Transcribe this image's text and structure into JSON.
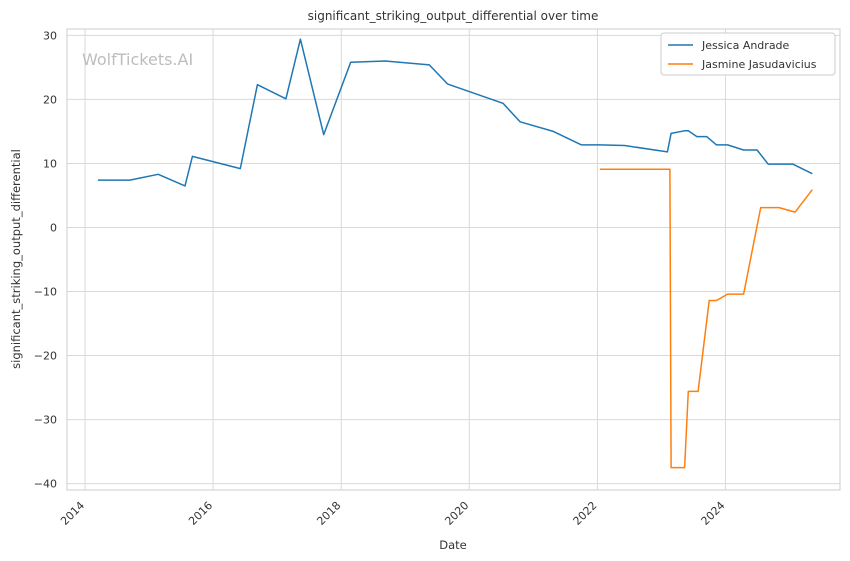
{
  "watermark": "WolfTickets.AI",
  "chart_data": {
    "type": "line",
    "title": "significant_striking_output_differential over time",
    "xlabel": "Date",
    "ylabel": "significant_striking_output_differential",
    "x_ticks": [
      "2014",
      "2016",
      "2018",
      "2020",
      "2022",
      "2024"
    ],
    "y_ticks": [
      30,
      20,
      10,
      0,
      -10,
      -20,
      -30,
      -40
    ],
    "xlim": [
      "2013-09-20",
      "2025-10-15"
    ],
    "ylim": [
      -41,
      31
    ],
    "grid": true,
    "legend_position": "top-right",
    "colors": {
      "grid": "#d9d9d9",
      "axes": "#cccccc"
    },
    "series": [
      {
        "name": "Jessica Andrade",
        "color": "#1f77b4",
        "points": [
          [
            "2014-03-15",
            7.4
          ],
          [
            "2014-09-13",
            7.4
          ],
          [
            "2015-02-22",
            8.3
          ],
          [
            "2015-07-25",
            6.5
          ],
          [
            "2015-09-05",
            11.1
          ],
          [
            "2016-06-04",
            9.2
          ],
          [
            "2016-09-10",
            22.3
          ],
          [
            "2017-02-19",
            20.1
          ],
          [
            "2017-05-13",
            29.4
          ],
          [
            "2017-09-23",
            14.5
          ],
          [
            "2018-02-24",
            25.8
          ],
          [
            "2018-09-08",
            26.0
          ],
          [
            "2019-05-18",
            25.4
          ],
          [
            "2019-08-31",
            22.4
          ],
          [
            "2020-07-11",
            19.4
          ],
          [
            "2020-10-17",
            16.5
          ],
          [
            "2021-04-24",
            15.0
          ],
          [
            "2021-10-02",
            12.9
          ],
          [
            "2022-01-15",
            12.9
          ],
          [
            "2022-06-04",
            12.8
          ],
          [
            "2023-02-04",
            11.8
          ],
          [
            "2023-02-25",
            14.7
          ],
          [
            "2023-05-13",
            15.1
          ],
          [
            "2023-06-03",
            15.1
          ],
          [
            "2023-07-22",
            14.2
          ],
          [
            "2023-09-16",
            14.2
          ],
          [
            "2023-11-11",
            12.9
          ],
          [
            "2024-01-13",
            12.9
          ],
          [
            "2024-04-13",
            12.1
          ],
          [
            "2024-06-29",
            12.1
          ],
          [
            "2024-08-31",
            9.9
          ],
          [
            "2025-01-18",
            9.9
          ],
          [
            "2025-05-10",
            8.4
          ]
        ]
      },
      {
        "name": "Jasmine Jasudavicius",
        "color": "#ff7f0e",
        "points": [
          [
            "2022-01-15",
            9.1
          ],
          [
            "2023-02-18",
            9.1
          ],
          [
            "2023-02-25",
            -37.5
          ],
          [
            "2023-05-13",
            -37.5
          ],
          [
            "2023-06-03",
            -25.6
          ],
          [
            "2023-07-29",
            -25.6
          ],
          [
            "2023-09-30",
            -11.4
          ],
          [
            "2023-11-11",
            -11.4
          ],
          [
            "2024-01-13",
            -10.4
          ],
          [
            "2024-04-13",
            -10.4
          ],
          [
            "2024-07-20",
            3.1
          ],
          [
            "2024-11-02",
            3.1
          ],
          [
            "2025-02-01",
            2.4
          ],
          [
            "2025-05-10",
            5.9
          ]
        ]
      }
    ]
  }
}
